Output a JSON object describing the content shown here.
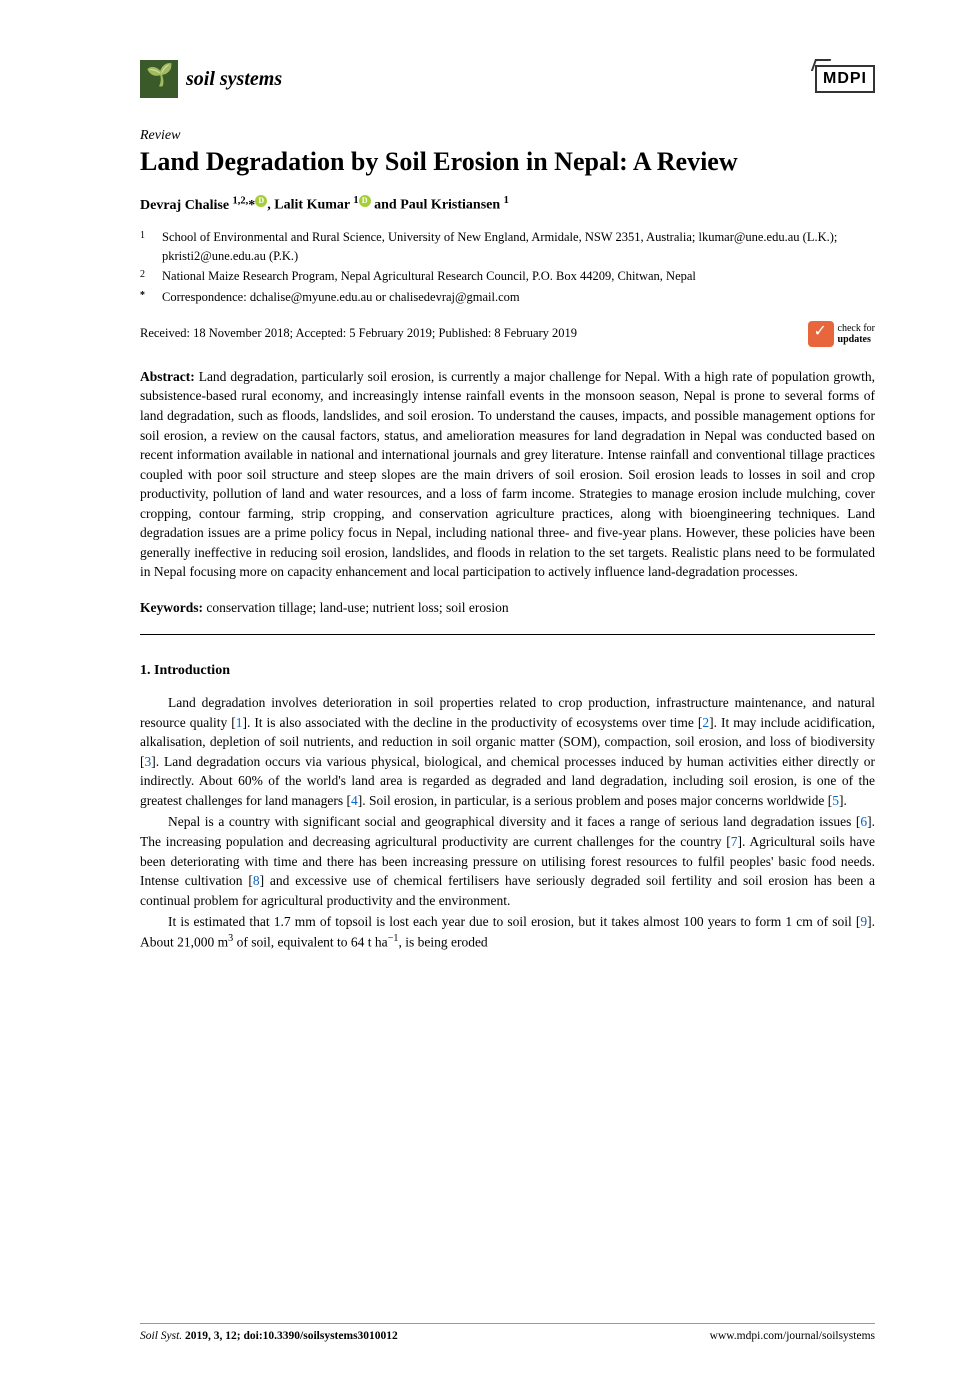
{
  "journal": {
    "name": "soil systems",
    "publisher": "MDPI"
  },
  "article": {
    "type": "Review",
    "title": "Land Degradation by Soil Erosion in Nepal: A Review",
    "authors_html": "Devraj Chalise <sup>1,2,</sup>*",
    "author2": ", Lalit Kumar ",
    "author2_sup": "1",
    "author3": " and Paul Kristiansen ",
    "author3_sup": "1"
  },
  "affiliations": {
    "aff1_num": "1",
    "aff1_text": "School of Environmental and Rural Science, University of New England, Armidale, NSW 2351, Australia; lkumar@une.edu.au (L.K.); pkristi2@une.edu.au (P.K.)",
    "aff2_num": "2",
    "aff2_text": "National Maize Research Program, Nepal Agricultural Research Council, P.O. Box 44209, Chitwan, Nepal",
    "corr_sym": "*",
    "corr_text": "Correspondence: dchalise@myune.edu.au or chalisedevraj@gmail.com"
  },
  "dates": "Received: 18 November 2018; Accepted: 5 February 2019; Published: 8 February 2019",
  "check_updates": {
    "line1": "check for",
    "line2": "updates"
  },
  "abstract": {
    "label": "Abstract:",
    "text": " Land degradation, particularly soil erosion, is currently a major challenge for Nepal. With a high rate of population growth, subsistence-based rural economy, and increasingly intense rainfall events in the monsoon season, Nepal is prone to several forms of land degradation, such as floods, landslides, and soil erosion. To understand the causes, impacts, and possible management options for soil erosion, a review on the causal factors, status, and amelioration measures for land degradation in Nepal was conducted based on recent information available in national and international journals and grey literature. Intense rainfall and conventional tillage practices coupled with poor soil structure and steep slopes are the main drivers of soil erosion. Soil erosion leads to losses in soil and crop productivity, pollution of land and water resources, and a loss of farm income. Strategies to manage erosion include mulching, cover cropping, contour farming, strip cropping, and conservation agriculture practices, along with bioengineering techniques. Land degradation issues are a prime policy focus in Nepal, including national three- and five-year plans. However, these policies have been generally ineffective in reducing soil erosion, landslides, and floods in relation to the set targets. Realistic plans need to be formulated in Nepal focusing more on capacity enhancement and local participation to actively influence land-degradation processes."
  },
  "keywords": {
    "label": "Keywords:",
    "text": " conservation tillage; land-use; nutrient loss; soil erosion"
  },
  "section1": {
    "heading": "1. Introduction",
    "para1_a": "Land degradation involves deterioration in soil properties related to crop production, infrastructure maintenance, and natural resource quality [",
    "ref1": "1",
    "para1_b": "]. It is also associated with the decline in the productivity of ecosystems over time [",
    "ref2": "2",
    "para1_c": "]. It may include acidification, alkalisation, depletion of soil nutrients, and reduction in soil organic matter (SOM), compaction, soil erosion, and loss of biodiversity [",
    "ref3": "3",
    "para1_d": "]. Land degradation occurs via various physical, biological, and chemical processes induced by human activities either directly or indirectly. About 60% of the world's land area is regarded as degraded and land degradation, including soil erosion, is one of the greatest challenges for land managers [",
    "ref4": "4",
    "para1_e": "]. Soil erosion, in particular, is a serious problem and poses major concerns worldwide [",
    "ref5": "5",
    "para1_f": "].",
    "para2_a": "Nepal is a country with significant social and geographical diversity and it faces a range of serious land degradation issues [",
    "ref6": "6",
    "para2_b": "]. The increasing population and decreasing agricultural productivity are current challenges for the country [",
    "ref7": "7",
    "para2_c": "]. Agricultural soils have been deteriorating with time and there has been increasing pressure on utilising forest resources to fulfil peoples' basic food needs. Intense cultivation [",
    "ref8": "8",
    "para2_d": "] and excessive use of chemical fertilisers have seriously degraded soil fertility and soil erosion has been a continual problem for agricultural productivity and the environment.",
    "para3_a": "It is estimated that 1.7 mm of topsoil is lost each year due to soil erosion, but it takes almost 100 years to form 1 cm of soil [",
    "ref9": "9",
    "para3_b": "]. About 21,000 m",
    "para3_sup": "3",
    "para3_c": " of soil, equivalent to 64 t ha",
    "para3_sup2": "−1",
    "para3_d": ", is being eroded"
  },
  "footer": {
    "left_journal": "Soil Syst.",
    "left_rest": " 2019, 3, 12; doi:10.3390/soilsystems3010012",
    "right": "www.mdpi.com/journal/soilsystems"
  }
}
